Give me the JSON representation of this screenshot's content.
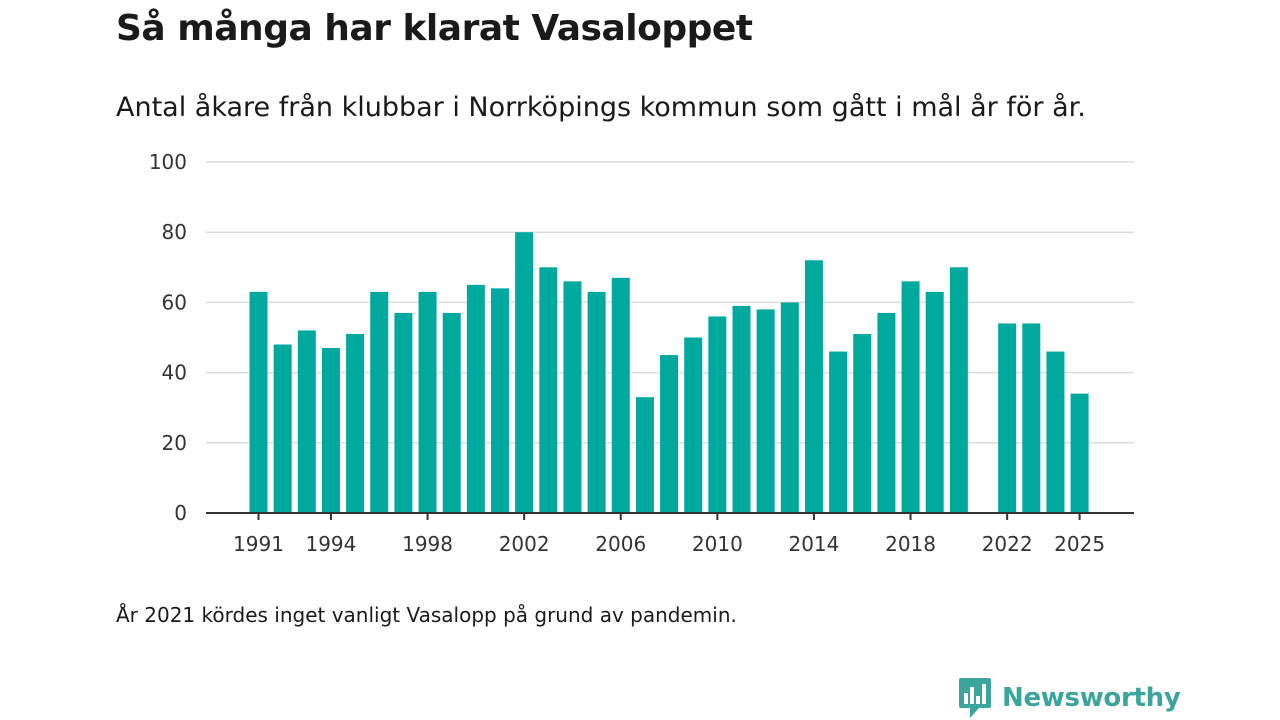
{
  "title": "Så många har klarat Vasaloppet",
  "subtitle": "Antal åkare från klubbar i Norrköpings kommun som gått i mål år för år.",
  "footnote": "År 2021 kördes inget vanligt Vasalopp på grund av pandemin.",
  "brand": {
    "name": "Newsworthy",
    "icon": "newsworthy-logo-icon",
    "color": "#3aa59d"
  },
  "colors": {
    "bar": "#00a99d",
    "grid": "#dcdcdc",
    "axis": "#333333",
    "text": "#333333"
  },
  "chart_data": {
    "type": "bar",
    "title": "Så många har klarat Vasaloppet",
    "xlabel": "",
    "ylabel": "",
    "ylim": [
      0,
      100
    ],
    "yticks": [
      0,
      20,
      40,
      60,
      80,
      100
    ],
    "grid": true,
    "categories": [
      1991,
      1992,
      1993,
      1994,
      1995,
      1996,
      1997,
      1998,
      1999,
      2000,
      2001,
      2002,
      2003,
      2004,
      2005,
      2006,
      2007,
      2008,
      2009,
      2010,
      2011,
      2012,
      2013,
      2014,
      2015,
      2016,
      2017,
      2018,
      2019,
      2020,
      2021,
      2022,
      2023,
      2024,
      2025
    ],
    "values": [
      63,
      48,
      52,
      47,
      51,
      63,
      57,
      63,
      57,
      65,
      64,
      80,
      70,
      66,
      63,
      67,
      33,
      45,
      50,
      56,
      59,
      58,
      60,
      72,
      46,
      51,
      57,
      66,
      63,
      70,
      null,
      54,
      54,
      46,
      34
    ],
    "xtick_labels": [
      "1991",
      "1994",
      "1998",
      "2002",
      "2006",
      "2010",
      "2014",
      "2018",
      "2022",
      "2025"
    ]
  }
}
